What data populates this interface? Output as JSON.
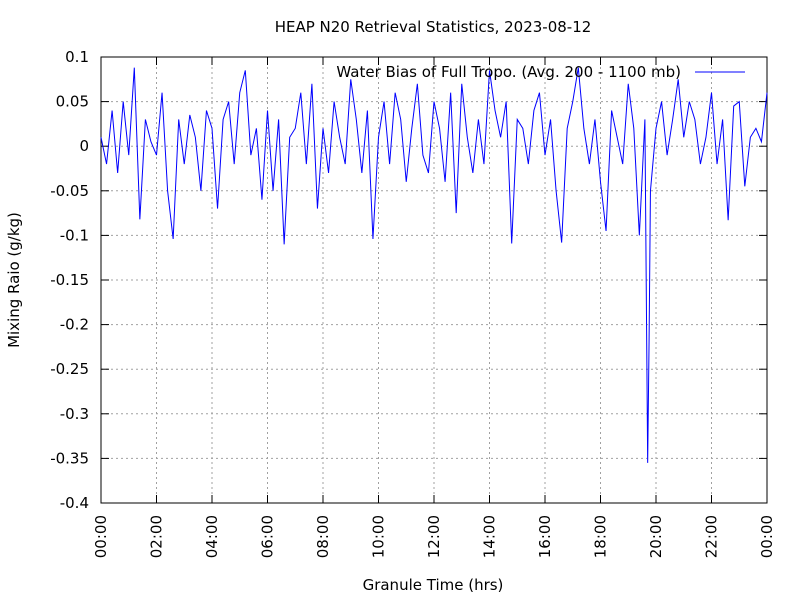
{
  "chart_data": {
    "type": "line",
    "title": "HEAP N20 Retrieval Statistics, 2023-08-12",
    "x_label": "Granule Time (hrs)",
    "y_label": "Mixing Raio (g/kg)",
    "legend": "top-right",
    "grid": true,
    "xlim": [
      0,
      24
    ],
    "ylim": [
      -0.4,
      0.1
    ],
    "xticks": [
      {
        "value": 0,
        "label": "00:00"
      },
      {
        "value": 2,
        "label": "02:00"
      },
      {
        "value": 4,
        "label": "04:00"
      },
      {
        "value": 6,
        "label": "06:00"
      },
      {
        "value": 8,
        "label": "08:00"
      },
      {
        "value": 10,
        "label": "10:00"
      },
      {
        "value": 12,
        "label": "12:00"
      },
      {
        "value": 14,
        "label": "14:00"
      },
      {
        "value": 16,
        "label": "16:00"
      },
      {
        "value": 18,
        "label": "18:00"
      },
      {
        "value": 20,
        "label": "20:00"
      },
      {
        "value": 22,
        "label": "22:00"
      },
      {
        "value": 24,
        "label": "00:00"
      }
    ],
    "yticks": [
      0.1,
      0.05,
      0,
      -0.05,
      -0.1,
      -0.15,
      -0.2,
      -0.25,
      -0.3,
      -0.35,
      -0.4
    ],
    "x": [
      0,
      0.2,
      0.4,
      0.6,
      0.8,
      1,
      1.2,
      1.4,
      1.6,
      1.8,
      2,
      2.2,
      2.4,
      2.6,
      2.8,
      3,
      3.2,
      3.4,
      3.6,
      3.8,
      4,
      4.2,
      4.4,
      4.6,
      4.8,
      5,
      5.2,
      5.4,
      5.6,
      5.8,
      6,
      6.2,
      6.4,
      6.6,
      6.8,
      7,
      7.2,
      7.4,
      7.6,
      7.8,
      8,
      8.2,
      8.4,
      8.6,
      8.8,
      9,
      9.2,
      9.4,
      9.6,
      9.8,
      10,
      10.2,
      10.4,
      10.6,
      10.8,
      11,
      11.2,
      11.4,
      11.6,
      11.8,
      12,
      12.2,
      12.4,
      12.6,
      12.8,
      13,
      13.2,
      13.4,
      13.6,
      13.8,
      14,
      14.2,
      14.4,
      14.6,
      14.8,
      15,
      15.2,
      15.4,
      15.6,
      15.8,
      16,
      16.2,
      16.4,
      16.6,
      16.8,
      17,
      17.2,
      17.4,
      17.6,
      17.8,
      18,
      18.2,
      18.4,
      18.6,
      18.8,
      19,
      19.2,
      19.4,
      19.6,
      19.7,
      19.75,
      19.8,
      20,
      20.2,
      20.4,
      20.6,
      20.8,
      21,
      21.2,
      21.4,
      21.6,
      21.8,
      22,
      22.2,
      22.4,
      22.6,
      22.8,
      23,
      23.2,
      23.4,
      23.6,
      23.8,
      24
    ],
    "series": [
      {
        "name": "Water Bias of Full Tropo. (Avg. 200 - 1100 mb)",
        "color": "#0000ff",
        "values": [
          0.01,
          -0.02,
          0.04,
          -0.03,
          0.05,
          -0.01,
          0.088,
          -0.082,
          0.03,
          0.005,
          -0.01,
          0.06,
          -0.05,
          -0.104,
          0.03,
          -0.02,
          0.035,
          0.01,
          -0.05,
          0.04,
          0.02,
          -0.07,
          0.03,
          0.05,
          -0.02,
          0.06,
          0.085,
          -0.01,
          0.02,
          -0.06,
          0.04,
          -0.05,
          0.03,
          -0.11,
          0.01,
          0.02,
          0.06,
          -0.02,
          0.07,
          -0.07,
          0.02,
          -0.03,
          0.05,
          0.01,
          -0.02,
          0.075,
          0.03,
          -0.03,
          0.04,
          -0.104,
          0.01,
          0.05,
          -0.02,
          0.06,
          0.03,
          -0.04,
          0.02,
          0.07,
          -0.01,
          -0.03,
          0.05,
          0.02,
          -0.04,
          0.06,
          -0.075,
          0.07,
          0.01,
          -0.03,
          0.03,
          -0.02,
          0.085,
          0.04,
          0.01,
          0.05,
          -0.109,
          0.03,
          0.02,
          -0.02,
          0.04,
          0.06,
          -0.01,
          0.03,
          -0.05,
          -0.108,
          0.02,
          0.05,
          0.088,
          0.02,
          -0.02,
          0.03,
          -0.04,
          -0.095,
          0.04,
          0.01,
          -0.02,
          0.07,
          0.02,
          -0.1,
          0.03,
          -0.355,
          -0.22,
          -0.05,
          0.02,
          0.05,
          -0.01,
          0.03,
          0.075,
          0.01,
          0.05,
          0.03,
          -0.02,
          0.01,
          0.06,
          -0.02,
          0.03,
          -0.083,
          0.045,
          0.05,
          -0.045,
          0.01,
          0.02,
          0.005,
          0.06
        ]
      }
    ]
  }
}
